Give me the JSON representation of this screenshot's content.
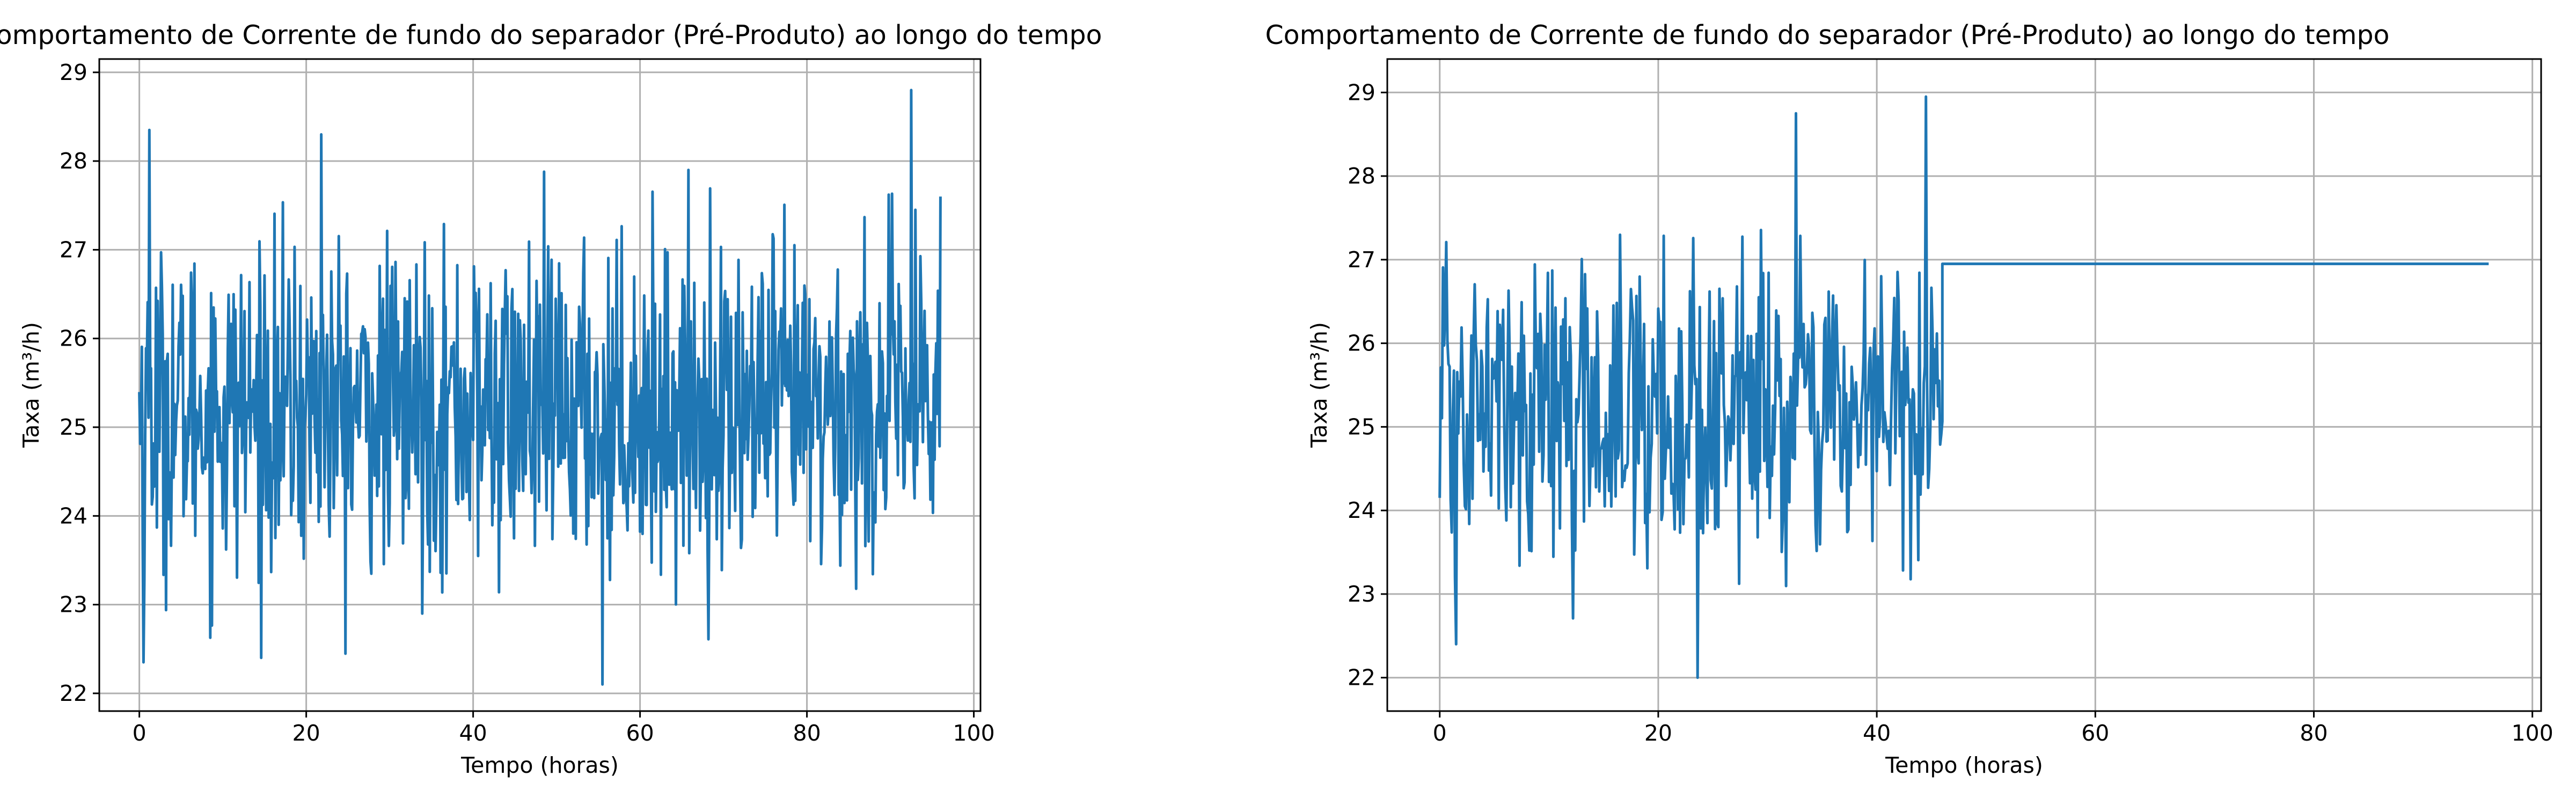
{
  "chart_data": [
    {
      "type": "line",
      "title": "Comportamento de Corrente de fundo do separador (Pré-Produto) ao longo do tempo",
      "xlabel": "Tempo (horas)",
      "ylabel": "Taxa (m³/h)",
      "xlim": [
        -4.8,
        100.8
      ],
      "ylim": [
        21.8,
        29.15
      ],
      "xticks": [
        0,
        20,
        40,
        60,
        80,
        100
      ],
      "yticks": [
        22,
        23,
        24,
        25,
        26,
        27,
        28,
        29
      ],
      "grid": true,
      "series": [
        {
          "color": "#1f77b4",
          "x_range": [
            0,
            96
          ],
          "approx_mean": 25.2,
          "observed_min": 22.1,
          "observed_max": 28.8,
          "notable_points": [
            [
              0.5,
              22.35
            ],
            [
              1.2,
              28.35
            ],
            [
              21.8,
              28.3
            ],
            [
              55.5,
              22.1
            ],
            [
              92.5,
              28.8
            ],
            [
              96,
              27.6
            ]
          ]
        }
      ]
    },
    {
      "type": "line",
      "title": "Comportamento de Corrente de fundo do separador (Pré-Produto) ao longo do tempo",
      "xlabel": "Tempo (horas)",
      "ylabel": "Taxa (m³/h)",
      "xlim": [
        -4.8,
        100.8
      ],
      "ylim": [
        21.6,
        29.4
      ],
      "xticks": [
        0,
        20,
        40,
        60,
        80,
        100
      ],
      "yticks": [
        22,
        23,
        24,
        25,
        26,
        27,
        28,
        29
      ],
      "grid": true,
      "series": [
        {
          "color": "#1f77b4",
          "x_range": [
            0,
            96
          ],
          "noisy_until": 46,
          "approx_mean": 25.2,
          "observed_min": 22.0,
          "observed_max": 28.95,
          "notable_points": [
            [
              1.5,
              22.4
            ],
            [
              23.6,
              22.0
            ],
            [
              32.6,
              28.75
            ],
            [
              44.5,
              28.95
            ]
          ],
          "flat_segment": {
            "x": [
              46,
              96
            ],
            "y": 26.95
          }
        }
      ]
    }
  ]
}
